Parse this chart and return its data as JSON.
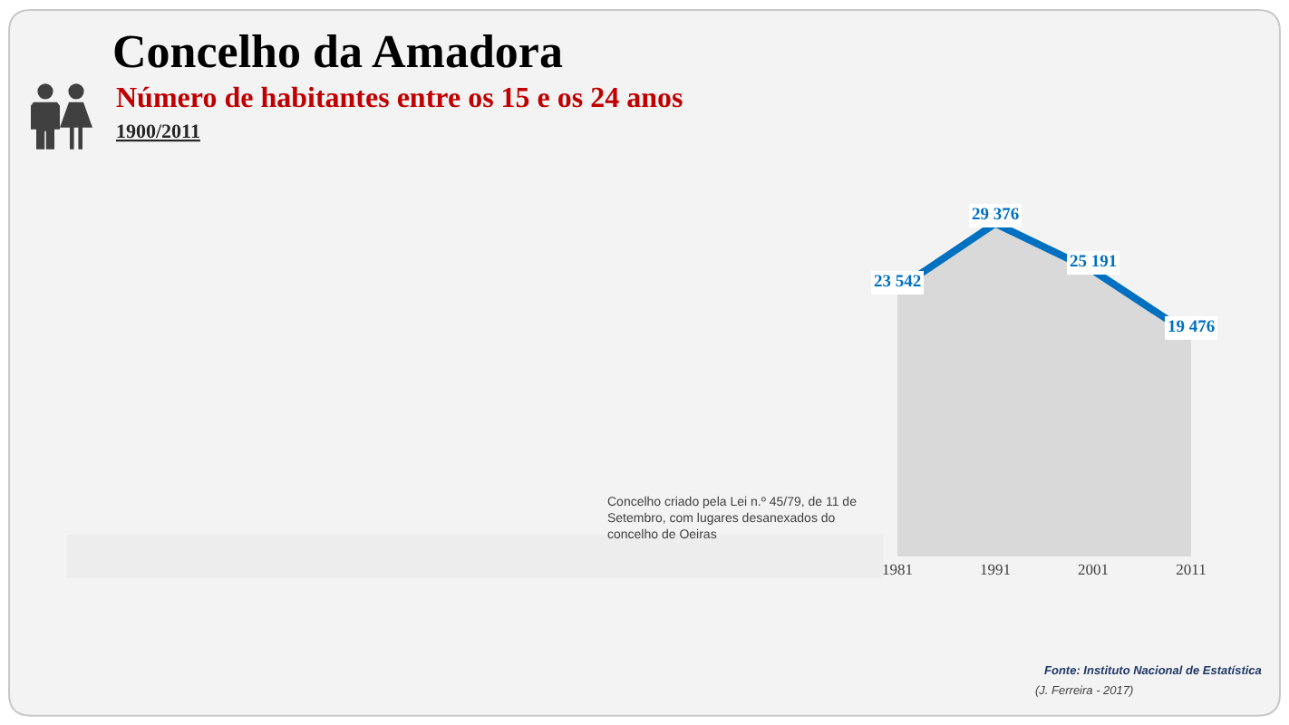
{
  "chart_data": {
    "type": "area",
    "title": "Concelho da Amadora",
    "subtitle": "Número de habitantes entre os 15 e os 24 anos",
    "annotations": [
      "1900/2011",
      "Concelho criado pela Lei n.º 45/79, de 11 de\nSetembro, com lugares desanexados do\nconcelho de Oeiras",
      "Fonte: Instituto Nacional de Estatística",
      "(J. Ferreira - 2017)"
    ],
    "categories": [
      "1981",
      "1991",
      "2001",
      "2011"
    ],
    "values": [
      23542,
      29376,
      25191,
      19476
    ],
    "color": "#0070c0",
    "value_labels": [
      "23 542",
      "29 376",
      "25 191",
      "19 476"
    ],
    "tick_labels": "x"
  }
}
